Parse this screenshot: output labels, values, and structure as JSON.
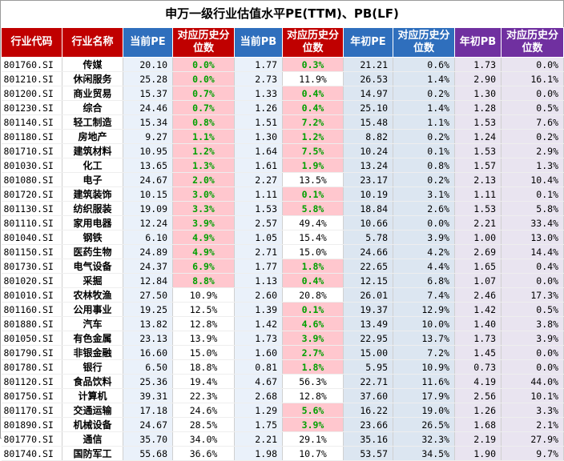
{
  "title": "申万一级行业估值水平PE(TTM)、PB(LF)",
  "headers": [
    "行业代码",
    "行业名称",
    "当前PE",
    "对应历史分位数",
    "当前PB",
    "对应历史分位数",
    "年初PE",
    "对应历史分位数",
    "年初PB",
    "对应历史分位数"
  ],
  "rows": [
    {
      "code": "801760.SI",
      "name": "传媒",
      "pe": "20.10",
      "pe_pct": "0.0%",
      "pe_hi": true,
      "pb": "1.77",
      "pb_pct": "0.3%",
      "pb_hi": true,
      "pe0": "21.21",
      "pe0_pct": "0.6%",
      "pb0": "1.73",
      "pb0_pct": "0.0%"
    },
    {
      "code": "801210.SI",
      "name": "休闲服务",
      "pe": "25.28",
      "pe_pct": "0.0%",
      "pe_hi": true,
      "pb": "2.73",
      "pb_pct": "11.9%",
      "pb_hi": false,
      "pe0": "26.53",
      "pe0_pct": "1.4%",
      "pb0": "2.90",
      "pb0_pct": "16.1%"
    },
    {
      "code": "801200.SI",
      "name": "商业贸易",
      "pe": "15.37",
      "pe_pct": "0.7%",
      "pe_hi": true,
      "pb": "1.33",
      "pb_pct": "0.4%",
      "pb_hi": true,
      "pe0": "14.97",
      "pe0_pct": "0.2%",
      "pb0": "1.30",
      "pb0_pct": "0.0%"
    },
    {
      "code": "801230.SI",
      "name": "综合",
      "pe": "24.46",
      "pe_pct": "0.7%",
      "pe_hi": true,
      "pb": "1.26",
      "pb_pct": "0.4%",
      "pb_hi": true,
      "pe0": "25.10",
      "pe0_pct": "1.4%",
      "pb0": "1.28",
      "pb0_pct": "0.5%"
    },
    {
      "code": "801140.SI",
      "name": "轻工制造",
      "pe": "15.34",
      "pe_pct": "0.8%",
      "pe_hi": true,
      "pb": "1.51",
      "pb_pct": "7.2%",
      "pb_hi": true,
      "pe0": "15.48",
      "pe0_pct": "1.1%",
      "pb0": "1.53",
      "pb0_pct": "7.6%"
    },
    {
      "code": "801180.SI",
      "name": "房地产",
      "pe": "9.27",
      "pe_pct": "1.1%",
      "pe_hi": true,
      "pb": "1.30",
      "pb_pct": "1.2%",
      "pb_hi": true,
      "pe0": "8.82",
      "pe0_pct": "0.2%",
      "pb0": "1.24",
      "pb0_pct": "0.2%"
    },
    {
      "code": "801710.SI",
      "name": "建筑材料",
      "pe": "10.95",
      "pe_pct": "1.2%",
      "pe_hi": true,
      "pb": "1.64",
      "pb_pct": "7.5%",
      "pb_hi": true,
      "pe0": "10.24",
      "pe0_pct": "0.1%",
      "pb0": "1.53",
      "pb0_pct": "2.9%"
    },
    {
      "code": "801030.SI",
      "name": "化工",
      "pe": "13.65",
      "pe_pct": "1.3%",
      "pe_hi": true,
      "pb": "1.61",
      "pb_pct": "1.9%",
      "pb_hi": true,
      "pe0": "13.24",
      "pe0_pct": "0.8%",
      "pb0": "1.57",
      "pb0_pct": "1.3%"
    },
    {
      "code": "801080.SI",
      "name": "电子",
      "pe": "24.67",
      "pe_pct": "2.0%",
      "pe_hi": true,
      "pb": "2.27",
      "pb_pct": "13.5%",
      "pb_hi": false,
      "pe0": "23.17",
      "pe0_pct": "0.2%",
      "pb0": "2.13",
      "pb0_pct": "10.4%"
    },
    {
      "code": "801720.SI",
      "name": "建筑装饰",
      "pe": "10.15",
      "pe_pct": "3.0%",
      "pe_hi": true,
      "pb": "1.11",
      "pb_pct": "0.1%",
      "pb_hi": true,
      "pe0": "10.19",
      "pe0_pct": "3.1%",
      "pb0": "1.11",
      "pb0_pct": "0.1%"
    },
    {
      "code": "801130.SI",
      "name": "纺织服装",
      "pe": "19.09",
      "pe_pct": "3.3%",
      "pe_hi": true,
      "pb": "1.53",
      "pb_pct": "5.8%",
      "pb_hi": true,
      "pe0": "18.84",
      "pe0_pct": "2.6%",
      "pb0": "1.53",
      "pb0_pct": "5.8%"
    },
    {
      "code": "801110.SI",
      "name": "家用电器",
      "pe": "12.24",
      "pe_pct": "3.9%",
      "pe_hi": true,
      "pb": "2.57",
      "pb_pct": "49.4%",
      "pb_hi": false,
      "pe0": "10.66",
      "pe0_pct": "0.0%",
      "pb0": "2.21",
      "pb0_pct": "33.4%"
    },
    {
      "code": "801040.SI",
      "name": "钢铁",
      "pe": "6.10",
      "pe_pct": "4.9%",
      "pe_hi": true,
      "pb": "1.05",
      "pb_pct": "15.4%",
      "pb_hi": false,
      "pe0": "5.78",
      "pe0_pct": "3.9%",
      "pb0": "1.00",
      "pb0_pct": "13.0%"
    },
    {
      "code": "801150.SI",
      "name": "医药生物",
      "pe": "24.89",
      "pe_pct": "4.9%",
      "pe_hi": true,
      "pb": "2.71",
      "pb_pct": "15.0%",
      "pb_hi": false,
      "pe0": "24.66",
      "pe0_pct": "4.2%",
      "pb0": "2.69",
      "pb0_pct": "14.4%"
    },
    {
      "code": "801730.SI",
      "name": "电气设备",
      "pe": "24.37",
      "pe_pct": "6.9%",
      "pe_hi": true,
      "pb": "1.77",
      "pb_pct": "1.8%",
      "pb_hi": true,
      "pe0": "22.65",
      "pe0_pct": "4.4%",
      "pb0": "1.65",
      "pb0_pct": "0.4%"
    },
    {
      "code": "801020.SI",
      "name": "采掘",
      "pe": "12.84",
      "pe_pct": "8.8%",
      "pe_hi": true,
      "pb": "1.13",
      "pb_pct": "0.4%",
      "pb_hi": true,
      "pe0": "12.15",
      "pe0_pct": "6.8%",
      "pb0": "1.07",
      "pb0_pct": "0.0%"
    },
    {
      "code": "801010.SI",
      "name": "农林牧渔",
      "pe": "27.50",
      "pe_pct": "10.9%",
      "pe_hi": false,
      "pb": "2.60",
      "pb_pct": "20.8%",
      "pb_hi": false,
      "pe0": "26.01",
      "pe0_pct": "7.4%",
      "pb0": "2.46",
      "pb0_pct": "17.3%"
    },
    {
      "code": "801160.SI",
      "name": "公用事业",
      "pe": "19.25",
      "pe_pct": "12.5%",
      "pe_hi": false,
      "pb": "1.39",
      "pb_pct": "0.1%",
      "pb_hi": true,
      "pe0": "19.37",
      "pe0_pct": "12.9%",
      "pb0": "1.42",
      "pb0_pct": "0.5%"
    },
    {
      "code": "801880.SI",
      "name": "汽车",
      "pe": "13.82",
      "pe_pct": "12.8%",
      "pe_hi": false,
      "pb": "1.42",
      "pb_pct": "4.6%",
      "pb_hi": true,
      "pe0": "13.49",
      "pe0_pct": "10.0%",
      "pb0": "1.40",
      "pb0_pct": "3.8%"
    },
    {
      "code": "801050.SI",
      "name": "有色金属",
      "pe": "23.13",
      "pe_pct": "13.9%",
      "pe_hi": false,
      "pb": "1.73",
      "pb_pct": "3.9%",
      "pb_hi": true,
      "pe0": "22.95",
      "pe0_pct": "13.7%",
      "pb0": "1.73",
      "pb0_pct": "3.9%"
    },
    {
      "code": "801790.SI",
      "name": "非银金融",
      "pe": "16.60",
      "pe_pct": "15.0%",
      "pe_hi": false,
      "pb": "1.60",
      "pb_pct": "2.7%",
      "pb_hi": true,
      "pe0": "15.00",
      "pe0_pct": "7.2%",
      "pb0": "1.45",
      "pb0_pct": "0.0%"
    },
    {
      "code": "801780.SI",
      "name": "银行",
      "pe": "6.50",
      "pe_pct": "18.8%",
      "pe_hi": false,
      "pb": "0.81",
      "pb_pct": "1.8%",
      "pb_hi": true,
      "pe0": "5.95",
      "pe0_pct": "10.9%",
      "pb0": "0.73",
      "pb0_pct": "0.0%"
    },
    {
      "code": "801120.SI",
      "name": "食品饮料",
      "pe": "25.36",
      "pe_pct": "19.4%",
      "pe_hi": false,
      "pb": "4.67",
      "pb_pct": "56.3%",
      "pb_hi": false,
      "pe0": "22.71",
      "pe0_pct": "11.6%",
      "pb0": "4.19",
      "pb0_pct": "44.0%"
    },
    {
      "code": "801750.SI",
      "name": "计算机",
      "pe": "39.31",
      "pe_pct": "22.3%",
      "pe_hi": false,
      "pb": "2.68",
      "pb_pct": "12.8%",
      "pb_hi": false,
      "pe0": "37.60",
      "pe0_pct": "17.9%",
      "pb0": "2.56",
      "pb0_pct": "10.1%"
    },
    {
      "code": "801170.SI",
      "name": "交通运输",
      "pe": "17.18",
      "pe_pct": "24.6%",
      "pe_hi": false,
      "pb": "1.29",
      "pb_pct": "5.6%",
      "pb_hi": true,
      "pe0": "16.22",
      "pe0_pct": "19.0%",
      "pb0": "1.26",
      "pb0_pct": "3.3%"
    },
    {
      "code": "801890.SI",
      "name": "机械设备",
      "pe": "24.67",
      "pe_pct": "28.5%",
      "pe_hi": false,
      "pb": "1.75",
      "pb_pct": "3.9%",
      "pb_hi": true,
      "pe0": "23.66",
      "pe0_pct": "26.5%",
      "pb0": "1.68",
      "pb0_pct": "2.1%"
    },
    {
      "code": "801770.SI",
      "name": "通信",
      "pe": "35.70",
      "pe_pct": "34.0%",
      "pe_hi": false,
      "pb": "2.21",
      "pb_pct": "29.1%",
      "pb_hi": false,
      "pe0": "35.16",
      "pe0_pct": "32.3%",
      "pb0": "2.19",
      "pb0_pct": "27.9%"
    },
    {
      "code": "801740.SI",
      "name": "国防军工",
      "pe": "55.68",
      "pe_pct": "36.6%",
      "pe_hi": false,
      "pb": "1.98",
      "pb_pct": "10.7%",
      "pb_hi": false,
      "pe0": "53.57",
      "pe0_pct": "34.5%",
      "pb0": "1.90",
      "pb0_pct": "9.7%"
    }
  ]
}
